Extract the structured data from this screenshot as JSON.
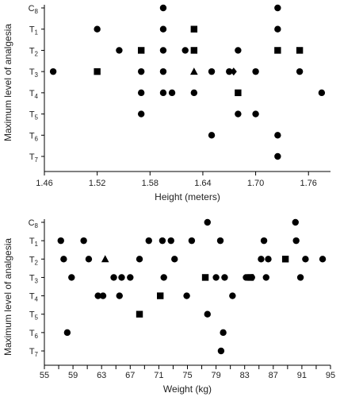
{
  "chart_data": [
    {
      "type": "scatter",
      "xlabel": "Height (meters)",
      "ylabel": "Maximum level of analgesia",
      "xlim": [
        1.46,
        1.785
      ],
      "x_ticks": [
        1.46,
        1.52,
        1.58,
        1.64,
        1.7,
        1.76
      ],
      "x_tick_labels": [
        "1.46",
        "1.52",
        "1.58",
        "1.64",
        "1.70",
        "1.76"
      ],
      "y_categories": [
        "C8",
        "T1",
        "T2",
        "T3",
        "T4",
        "T5",
        "T6",
        "T7"
      ],
      "grid": false,
      "points": [
        {
          "x": 1.47,
          "y": "T3",
          "marker": "circle"
        },
        {
          "x": 1.52,
          "y": "T1",
          "marker": "circle"
        },
        {
          "x": 1.52,
          "y": "T3",
          "marker": "square"
        },
        {
          "x": 1.545,
          "y": "T2",
          "marker": "circle"
        },
        {
          "x": 1.57,
          "y": "T2",
          "marker": "square"
        },
        {
          "x": 1.57,
          "y": "T3",
          "marker": "circle"
        },
        {
          "x": 1.57,
          "y": "T4",
          "marker": "circle"
        },
        {
          "x": 1.57,
          "y": "T5",
          "marker": "circle"
        },
        {
          "x": 1.595,
          "y": "C8",
          "marker": "circle"
        },
        {
          "x": 1.595,
          "y": "T1",
          "marker": "circle"
        },
        {
          "x": 1.595,
          "y": "T2",
          "marker": "circle"
        },
        {
          "x": 1.595,
          "y": "T3",
          "marker": "circle"
        },
        {
          "x": 1.595,
          "y": "T4",
          "marker": "circle"
        },
        {
          "x": 1.605,
          "y": "T4",
          "marker": "circle"
        },
        {
          "x": 1.62,
          "y": "T2",
          "marker": "circle"
        },
        {
          "x": 1.63,
          "y": "T1",
          "marker": "square"
        },
        {
          "x": 1.63,
          "y": "T2",
          "marker": "square"
        },
        {
          "x": 1.63,
          "y": "T3",
          "marker": "triangle"
        },
        {
          "x": 1.63,
          "y": "T4",
          "marker": "circle"
        },
        {
          "x": 1.65,
          "y": "T3",
          "marker": "circle"
        },
        {
          "x": 1.65,
          "y": "T6",
          "marker": "circle"
        },
        {
          "x": 1.67,
          "y": "T3",
          "marker": "circle"
        },
        {
          "x": 1.675,
          "y": "T3",
          "marker": "diamond"
        },
        {
          "x": 1.68,
          "y": "T2",
          "marker": "circle"
        },
        {
          "x": 1.68,
          "y": "T4",
          "marker": "square"
        },
        {
          "x": 1.68,
          "y": "T5",
          "marker": "circle"
        },
        {
          "x": 1.7,
          "y": "T3",
          "marker": "circle"
        },
        {
          "x": 1.7,
          "y": "T5",
          "marker": "circle"
        },
        {
          "x": 1.725,
          "y": "C8",
          "marker": "circle"
        },
        {
          "x": 1.725,
          "y": "T1",
          "marker": "circle"
        },
        {
          "x": 1.725,
          "y": "T2",
          "marker": "square"
        },
        {
          "x": 1.725,
          "y": "T6",
          "marker": "circle"
        },
        {
          "x": 1.725,
          "y": "T7",
          "marker": "circle"
        },
        {
          "x": 1.75,
          "y": "T2",
          "marker": "square"
        },
        {
          "x": 1.75,
          "y": "T3",
          "marker": "circle"
        },
        {
          "x": 1.775,
          "y": "T4",
          "marker": "circle"
        }
      ]
    },
    {
      "type": "scatter",
      "xlabel": "Weight (kg)",
      "ylabel": "Maximum level of analgesia",
      "xlim": [
        55,
        95
      ],
      "x_ticks": [
        55,
        57,
        59,
        61,
        63,
        65,
        67,
        69,
        71,
        73,
        75,
        77,
        79,
        81,
        83,
        85,
        87,
        89,
        91,
        93,
        95
      ],
      "x_tick_labels": [
        "55",
        "59",
        "63",
        "67",
        "71",
        "75",
        "79",
        "83",
        "87",
        "91",
        "95"
      ],
      "y_categories": [
        "C8",
        "T1",
        "T2",
        "T3",
        "T4",
        "T5",
        "T6",
        "T7"
      ],
      "grid": false,
      "points": [
        {
          "x": 57.3,
          "y": "T1",
          "marker": "circle"
        },
        {
          "x": 57.7,
          "y": "T2",
          "marker": "circle"
        },
        {
          "x": 58.2,
          "y": "T6",
          "marker": "circle"
        },
        {
          "x": 58.8,
          "y": "T3",
          "marker": "circle"
        },
        {
          "x": 60.5,
          "y": "T1",
          "marker": "circle"
        },
        {
          "x": 61.2,
          "y": "T2",
          "marker": "circle"
        },
        {
          "x": 62.5,
          "y": "T4",
          "marker": "circle"
        },
        {
          "x": 63.2,
          "y": "T4",
          "marker": "circle"
        },
        {
          "x": 63.5,
          "y": "T2",
          "marker": "triangle"
        },
        {
          "x": 64.7,
          "y": "T3",
          "marker": "circle"
        },
        {
          "x": 65.5,
          "y": "T4",
          "marker": "circle"
        },
        {
          "x": 65.8,
          "y": "T3",
          "marker": "circle"
        },
        {
          "x": 67.0,
          "y": "T3",
          "marker": "circle"
        },
        {
          "x": 68.3,
          "y": "T5",
          "marker": "square"
        },
        {
          "x": 68.3,
          "y": "T2",
          "marker": "circle"
        },
        {
          "x": 69.6,
          "y": "T1",
          "marker": "circle"
        },
        {
          "x": 71.2,
          "y": "T4",
          "marker": "square"
        },
        {
          "x": 71.5,
          "y": "T1",
          "marker": "circle"
        },
        {
          "x": 71.7,
          "y": "T3",
          "marker": "circle"
        },
        {
          "x": 72.7,
          "y": "T1",
          "marker": "circle"
        },
        {
          "x": 73.2,
          "y": "T2",
          "marker": "circle"
        },
        {
          "x": 74.9,
          "y": "T4",
          "marker": "circle"
        },
        {
          "x": 75.6,
          "y": "T1",
          "marker": "circle"
        },
        {
          "x": 77.5,
          "y": "T3",
          "marker": "square"
        },
        {
          "x": 77.8,
          "y": "T5",
          "marker": "circle"
        },
        {
          "x": 77.8,
          "y": "C8",
          "marker": "circle"
        },
        {
          "x": 79.0,
          "y": "T3",
          "marker": "circle"
        },
        {
          "x": 79.6,
          "y": "T1",
          "marker": "circle"
        },
        {
          "x": 79.7,
          "y": "T7",
          "marker": "circle"
        },
        {
          "x": 80.0,
          "y": "T6",
          "marker": "circle"
        },
        {
          "x": 80.2,
          "y": "T3",
          "marker": "circle"
        },
        {
          "x": 81.3,
          "y": "T4",
          "marker": "circle"
        },
        {
          "x": 83.2,
          "y": "T3",
          "marker": "circle"
        },
        {
          "x": 83.8,
          "y": "T3",
          "marker": "square"
        },
        {
          "x": 84.0,
          "y": "T3",
          "marker": "circle"
        },
        {
          "x": 85.3,
          "y": "T2",
          "marker": "circle"
        },
        {
          "x": 85.7,
          "y": "T1",
          "marker": "circle"
        },
        {
          "x": 86.0,
          "y": "T3",
          "marker": "circle"
        },
        {
          "x": 86.3,
          "y": "T2",
          "marker": "circle"
        },
        {
          "x": 88.7,
          "y": "T2",
          "marker": "square"
        },
        {
          "x": 90.1,
          "y": "C8",
          "marker": "circle"
        },
        {
          "x": 90.2,
          "y": "T1",
          "marker": "circle"
        },
        {
          "x": 90.8,
          "y": "T3",
          "marker": "circle"
        },
        {
          "x": 91.5,
          "y": "T2",
          "marker": "circle"
        },
        {
          "x": 93.9,
          "y": "T2",
          "marker": "circle"
        }
      ]
    }
  ]
}
